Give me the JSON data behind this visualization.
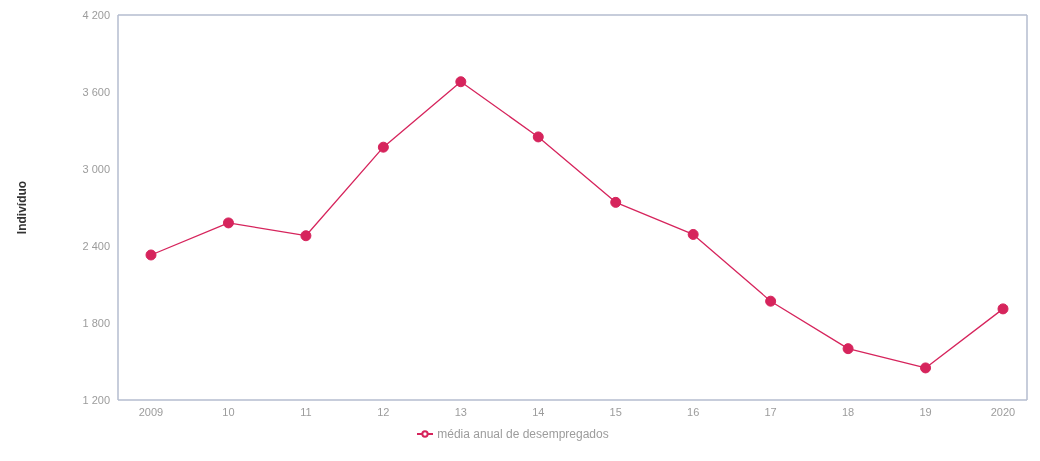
{
  "chart_data": {
    "type": "line",
    "ylabel": "Indivíduo",
    "categories": [
      "2009",
      "10",
      "11",
      "12",
      "13",
      "14",
      "15",
      "16",
      "17",
      "18",
      "19",
      "2020"
    ],
    "series": [
      {
        "name": "média anual de desempregados",
        "color": "#d6245c",
        "values": [
          2330,
          2580,
          2480,
          3170,
          3680,
          3250,
          2740,
          2490,
          1970,
          1600,
          1450,
          1910
        ]
      }
    ],
    "ylim": [
      1200,
      4200
    ],
    "yticks": [
      {
        "value": 1200,
        "label": "1 200"
      },
      {
        "value": 1800,
        "label": "1 800"
      },
      {
        "value": 2400,
        "label": "2 400"
      },
      {
        "value": 3000,
        "label": "3 000"
      },
      {
        "value": 3600,
        "label": "3 600"
      },
      {
        "value": 4200,
        "label": "4 200"
      }
    ],
    "legend": "bottom",
    "marker": "circle",
    "line_style": "solid"
  }
}
